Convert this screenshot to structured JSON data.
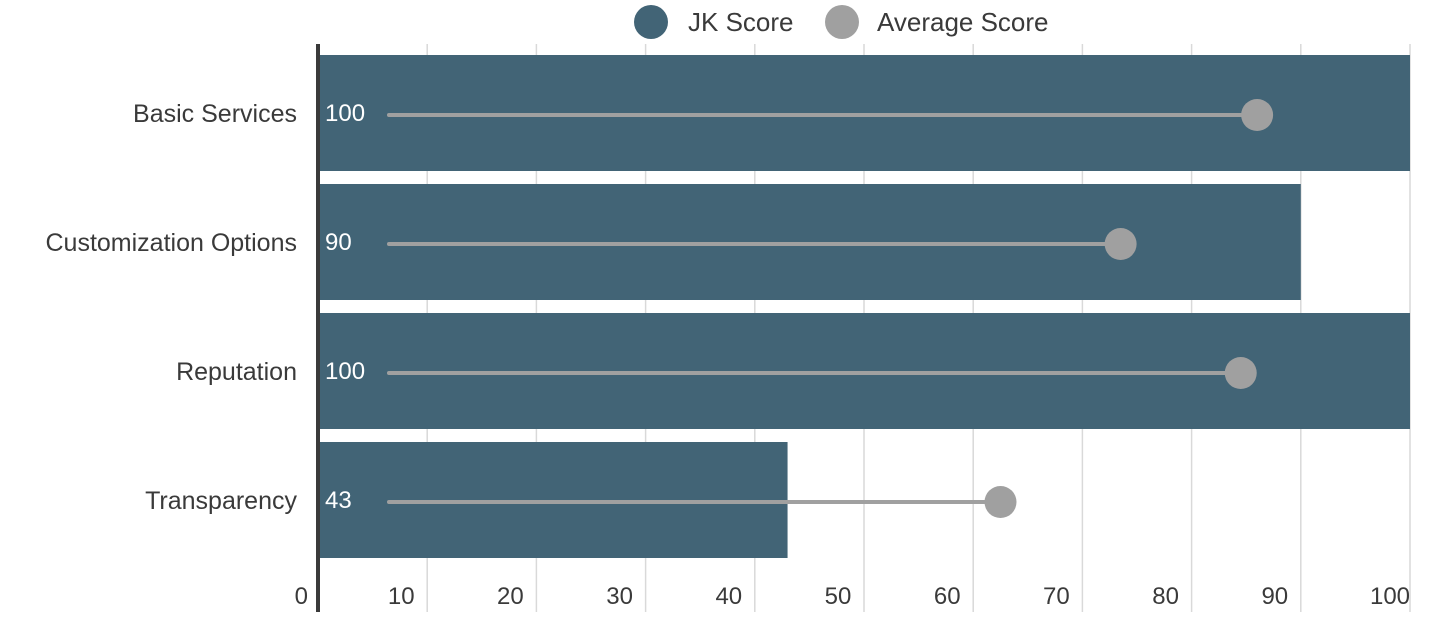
{
  "chart_data": {
    "type": "bar",
    "orientation": "horizontal",
    "categories": [
      "Basic Services",
      "Customization Options",
      "Reputation",
      "Transparency"
    ],
    "series": [
      {
        "name": "JK Score",
        "values": [
          100,
          90,
          100,
          43
        ],
        "color": "#426476",
        "mark": "bar"
      },
      {
        "name": "Average Score",
        "values": [
          86,
          73.5,
          84.5,
          62.5
        ],
        "color": "#a0a0a0",
        "mark": "lollipop"
      }
    ],
    "data_labels": [
      "100",
      "90",
      "100",
      "43"
    ],
    "lollipop_start": [
      6.5,
      6.5,
      6.5,
      6.5
    ],
    "xlim": [
      0,
      100
    ],
    "x_ticks": [
      0,
      10,
      20,
      30,
      40,
      50,
      60,
      70,
      80,
      90,
      100
    ],
    "x_tick_labels": [
      "0",
      "10",
      "20",
      "30",
      "40",
      "50",
      "60",
      "70",
      "80",
      "90",
      "100"
    ],
    "title": "",
    "xlabel": "",
    "ylabel": "",
    "grid": true,
    "legend_position": "top-center"
  },
  "colors": {
    "text": "#3a3a3a",
    "axis": "#3a3a3a",
    "grid": "#d9d9d9",
    "label_on_bar": "#ffffff"
  }
}
